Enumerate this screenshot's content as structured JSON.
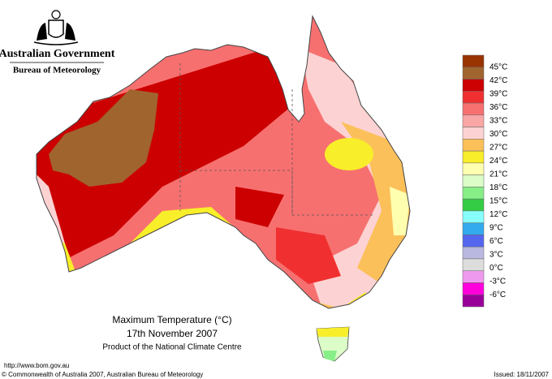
{
  "header": {
    "government": "Australian Government",
    "bureau": "Bureau of Meteorology"
  },
  "legend": {
    "labels": [
      "45°C",
      "42°C",
      "39°C",
      "36°C",
      "33°C",
      "30°C",
      "27°C",
      "24°C",
      "21°C",
      "18°C",
      "15°C",
      "12°C",
      "9°C",
      "6°C",
      "3°C",
      "0°C",
      "-3°C",
      "-6°C"
    ],
    "colors": [
      "#993300",
      "#a0642e",
      "#cc0000",
      "#f03030",
      "#f77070",
      "#f9a6a6",
      "#fdd2d2",
      "#fbc05a",
      "#f8ee2a",
      "#ffffb0",
      "#dcfcc8",
      "#88ee88",
      "#33cc44",
      "#88ffff",
      "#33aaee",
      "#5566ee",
      "#b8b8e0",
      "#dddddd",
      "#ee99ee",
      "#ff00dd",
      "#990099"
    ]
  },
  "caption": {
    "title": "Maximum Temperature (°C)",
    "date": "17th November 2007",
    "product": "Product of the National Climate Centre"
  },
  "footer": {
    "url": "http://www.bom.gov.au",
    "copyright": "© Commonwealth of Australia 2007, Australian Bureau of Meteorology",
    "issued": "Issued: 18/11/2007"
  }
}
